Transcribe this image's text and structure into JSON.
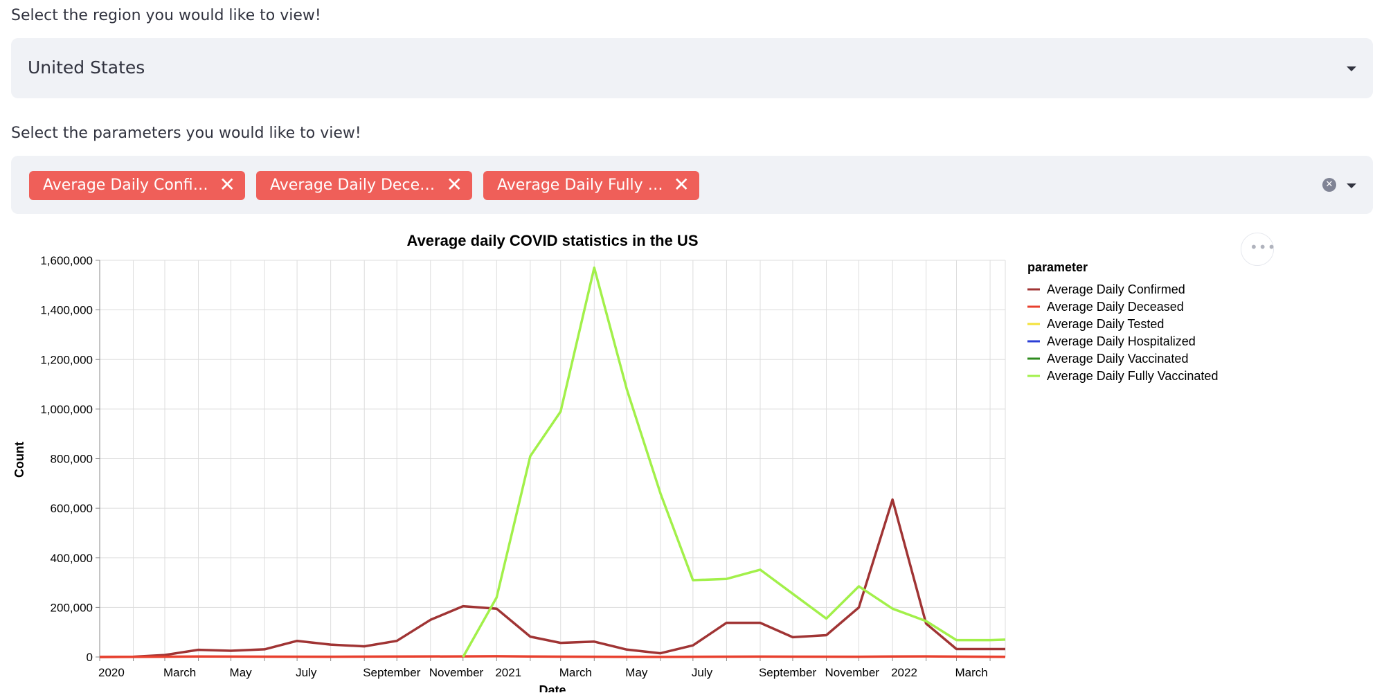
{
  "region": {
    "label": "Select the region you would like to view!",
    "selected": "United States"
  },
  "parameters": {
    "label": "Select the parameters you would like to view!",
    "tags": [
      {
        "label": "Average Daily Confi…",
        "remove": "✕"
      },
      {
        "label": "Average Daily Dece…",
        "remove": "✕"
      },
      {
        "label": "Average Daily Fully …",
        "remove": "✕"
      }
    ],
    "clear_icon": "✕"
  },
  "menu_icon": "•••",
  "colors": {
    "confirmed": "#a03434",
    "deceased": "#e8402e",
    "tested": "#f4e23a",
    "hospitalized": "#2b3fd6",
    "vaccinated": "#2e8b1e",
    "fully_vaccinated": "#a2f04a",
    "grid": "#dddddd",
    "axis": "#888888"
  },
  "chart_data": {
    "type": "line",
    "title": "Average daily COVID statistics in the US",
    "xlabel": "Date",
    "ylabel": "Count",
    "ylim": [
      0,
      1600000
    ],
    "yticks": [
      0,
      200000,
      400000,
      600000,
      800000,
      1000000,
      1200000,
      1400000,
      1600000
    ],
    "ytick_labels": [
      "0",
      "200,000",
      "400,000",
      "600,000",
      "800,000",
      "1,000,000",
      "1,200,000",
      "1,400,000",
      "1,600,000"
    ],
    "xlim": [
      "2020-01-01",
      "2022-04-15"
    ],
    "xtick_labels": [
      {
        "date": "2020-01-01",
        "label": "2020"
      },
      {
        "date": "2020-03-01",
        "label": "March"
      },
      {
        "date": "2020-05-01",
        "label": "May"
      },
      {
        "date": "2020-07-01",
        "label": "July"
      },
      {
        "date": "2020-09-01",
        "label": "September"
      },
      {
        "date": "2020-11-01",
        "label": "November"
      },
      {
        "date": "2021-01-01",
        "label": "2021"
      },
      {
        "date": "2021-03-01",
        "label": "March"
      },
      {
        "date": "2021-05-01",
        "label": "May"
      },
      {
        "date": "2021-07-01",
        "label": "July"
      },
      {
        "date": "2021-09-01",
        "label": "September"
      },
      {
        "date": "2021-11-01",
        "label": "November"
      },
      {
        "date": "2022-01-01",
        "label": "2022"
      },
      {
        "date": "2022-03-01",
        "label": "March"
      }
    ],
    "grid": true,
    "legend_title": "parameter",
    "legend_position": "right",
    "series": [
      {
        "name": "Average Daily Confirmed",
        "color_key": "confirmed",
        "points": [
          [
            "2020-01-01",
            0
          ],
          [
            "2020-02-01",
            1000
          ],
          [
            "2020-03-01",
            8000
          ],
          [
            "2020-04-01",
            29000
          ],
          [
            "2020-05-01",
            25000
          ],
          [
            "2020-06-01",
            31000
          ],
          [
            "2020-07-01",
            65000
          ],
          [
            "2020-08-01",
            50000
          ],
          [
            "2020-09-01",
            43000
          ],
          [
            "2020-10-01",
            65000
          ],
          [
            "2020-11-01",
            150000
          ],
          [
            "2020-12-01",
            205000
          ],
          [
            "2021-01-01",
            195000
          ],
          [
            "2021-02-01",
            82000
          ],
          [
            "2021-03-01",
            57000
          ],
          [
            "2021-04-01",
            62000
          ],
          [
            "2021-05-01",
            30000
          ],
          [
            "2021-06-01",
            15000
          ],
          [
            "2021-07-01",
            47000
          ],
          [
            "2021-08-01",
            138000
          ],
          [
            "2021-09-01",
            138000
          ],
          [
            "2021-10-01",
            80000
          ],
          [
            "2021-11-01",
            88000
          ],
          [
            "2021-12-01",
            200000
          ],
          [
            "2022-01-01",
            635000
          ],
          [
            "2022-02-01",
            135000
          ],
          [
            "2022-03-01",
            32000
          ],
          [
            "2022-04-01",
            32000
          ],
          [
            "2022-04-15",
            32000
          ]
        ]
      },
      {
        "name": "Average Daily Deceased",
        "color_key": "deceased",
        "points": [
          [
            "2020-01-01",
            0
          ],
          [
            "2020-04-01",
            2000
          ],
          [
            "2020-08-01",
            1000
          ],
          [
            "2020-12-01",
            2500
          ],
          [
            "2021-01-01",
            3000
          ],
          [
            "2021-03-01",
            1500
          ],
          [
            "2021-06-01",
            400
          ],
          [
            "2021-09-01",
            1800
          ],
          [
            "2021-12-01",
            1200
          ],
          [
            "2022-01-01",
            2000
          ],
          [
            "2022-02-01",
            2500
          ],
          [
            "2022-04-15",
            600
          ]
        ]
      },
      {
        "name": "Average Daily Tested",
        "color_key": "tested",
        "points": []
      },
      {
        "name": "Average Daily Hospitalized",
        "color_key": "hospitalized",
        "points": []
      },
      {
        "name": "Average Daily Vaccinated",
        "color_key": "vaccinated",
        "points": []
      },
      {
        "name": "Average Daily Fully Vaccinated",
        "color_key": "fully_vaccinated",
        "points": [
          [
            "2020-12-01",
            0
          ],
          [
            "2021-01-01",
            240000
          ],
          [
            "2021-02-01",
            810000
          ],
          [
            "2021-03-01",
            990000
          ],
          [
            "2021-04-01",
            1570000
          ],
          [
            "2021-05-01",
            1080000
          ],
          [
            "2021-06-01",
            660000
          ],
          [
            "2021-07-01",
            310000
          ],
          [
            "2021-08-01",
            315000
          ],
          [
            "2021-09-01",
            352000
          ],
          [
            "2021-10-01",
            255000
          ],
          [
            "2021-11-01",
            155000
          ],
          [
            "2021-12-01",
            285000
          ],
          [
            "2022-01-01",
            195000
          ],
          [
            "2022-02-01",
            145000
          ],
          [
            "2022-03-01",
            68000
          ],
          [
            "2022-04-01",
            68000
          ],
          [
            "2022-04-15",
            70000
          ]
        ]
      }
    ]
  }
}
